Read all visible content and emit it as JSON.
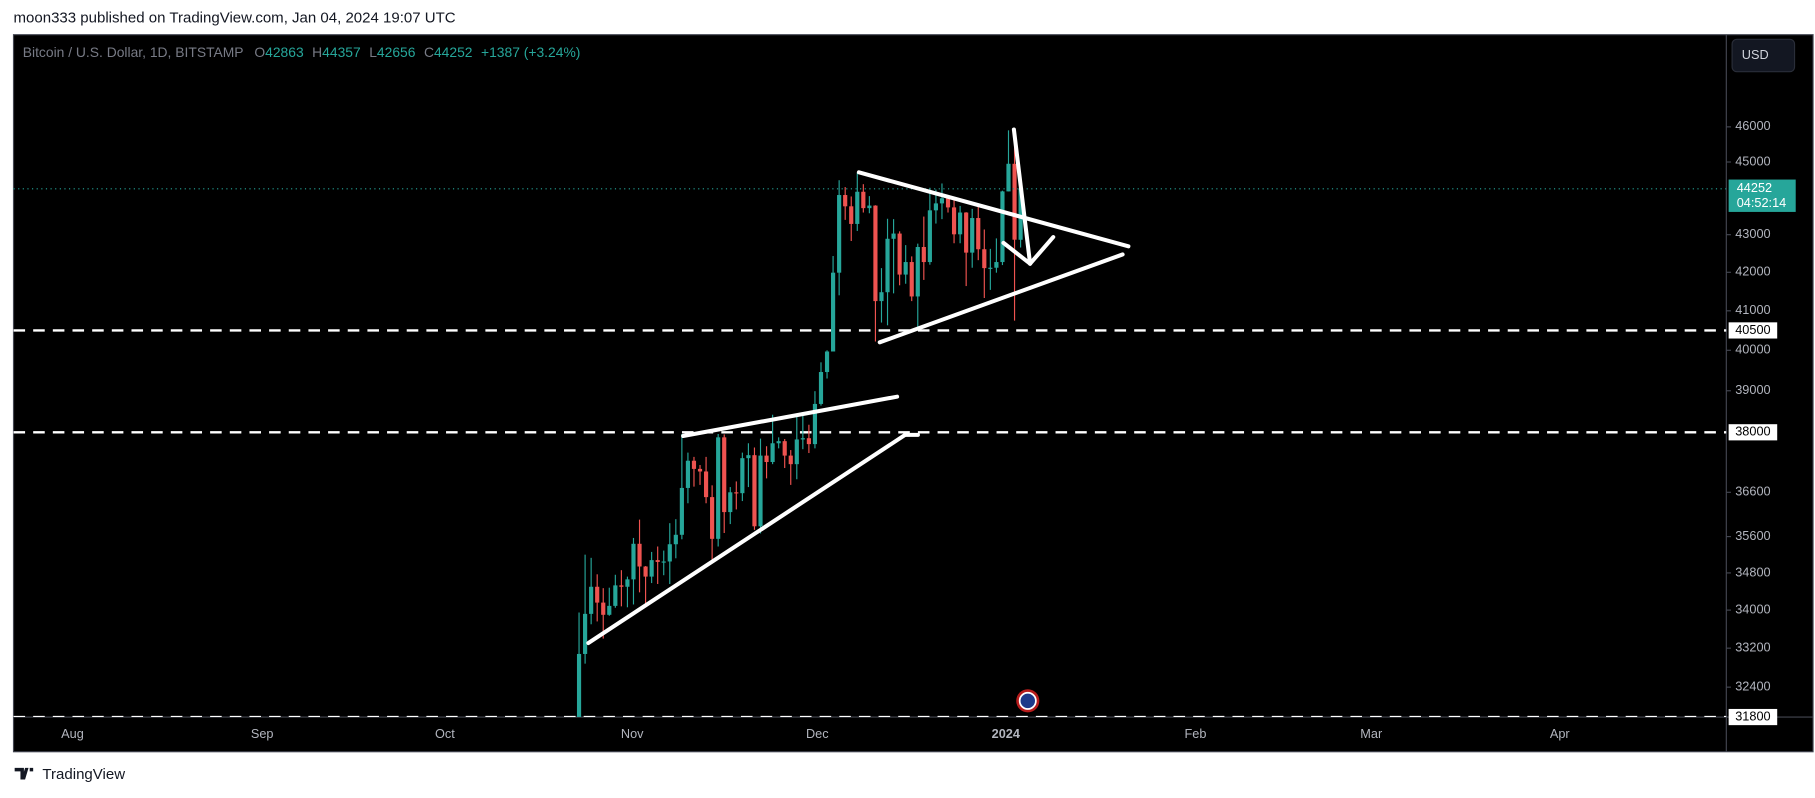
{
  "header": {
    "text": "moon333 published on TradingView.com, Jan 04, 2024 19:07 UTC"
  },
  "chart_data": {
    "type": "candlestick",
    "title": "Bitcoin / U.S. Dollar, 1D, BITSTAMP",
    "legend": {
      "open_label": "O",
      "open": 42863,
      "high_label": "H",
      "high": 44357,
      "low_label": "L",
      "low": 42656,
      "close_label": "C",
      "close": 44252,
      "change": "+1387 (+3.24%)"
    },
    "x_labels": [
      "Aug",
      "Sep",
      "Oct",
      "Nov",
      "Dec",
      "2024",
      "Feb",
      "Mar",
      "Apr"
    ],
    "open": [
      30530,
      33080,
      33920,
      34500,
      34160,
      33900,
      34090,
      34530,
      34500,
      34660,
      35440,
      34940,
      34720,
      35080,
      35040,
      35050,
      35430,
      35640,
      36700,
      37330,
      37140,
      37080,
      36490,
      35550,
      37880,
      36150,
      36600,
      36580,
      37390,
      37460,
      35830,
      37450,
      37300,
      37740,
      37790,
      37450,
      37250,
      37830,
      37860,
      37720,
      38680,
      39460,
      39970,
      41990,
      44080,
      43770,
      43290,
      44170,
      43720,
      43790,
      41250,
      41480,
      42890,
      43030,
      41940,
      42270,
      41370,
      42670,
      42270,
      43660,
      43850,
      43990,
      43740,
      43010,
      43600,
      42520,
      43450,
      42610,
      42110,
      42120,
      42270,
      44180,
      44950,
      42863
    ],
    "high": [
      33950,
      35200,
      35130,
      34770,
      34470,
      34480,
      34760,
      34860,
      34720,
      35570,
      35980,
      34950,
      35260,
      35380,
      35290,
      35900,
      35990,
      37960,
      37520,
      37420,
      37230,
      37420,
      36760,
      37960,
      37950,
      36720,
      36850,
      37520,
      37740,
      37640,
      37850,
      37670,
      38420,
      37880,
      37840,
      37580,
      38380,
      38440,
      38180,
      38990,
      39700,
      40000,
      42430,
      44490,
      44300,
      44040,
      44700,
      44380,
      44050,
      43800,
      42110,
      43430,
      43420,
      43090,
      42720,
      42420,
      42760,
      43490,
      44280,
      44230,
      44400,
      44000,
      43950,
      43780,
      43610,
      43700,
      43810,
      43140,
      42620,
      42900,
      44200,
      45900,
      45500,
      44357
    ],
    "low": [
      30370,
      32880,
      33700,
      33760,
      33400,
      33880,
      34050,
      34080,
      34060,
      34120,
      34380,
      34100,
      34580,
      34560,
      34750,
      34560,
      35120,
      35540,
      36350,
      36730,
      36770,
      36350,
      35090,
      35380,
      35680,
      35880,
      36210,
      36400,
      36720,
      35750,
      35670,
      36920,
      37250,
      37620,
      37160,
      36770,
      36900,
      37600,
      37510,
      37620,
      38640,
      39300,
      39970,
      41400,
      43400,
      42830,
      43100,
      43600,
      43580,
      40220,
      40700,
      40630,
      41450,
      41660,
      41700,
      41250,
      40530,
      41800,
      42200,
      43300,
      43420,
      43600,
      42770,
      42770,
      41640,
      42120,
      42320,
      41330,
      41540,
      41990,
      42190,
      44180,
      40750,
      42656
    ],
    "close": [
      33080,
      33920,
      34500,
      34160,
      33900,
      34090,
      34530,
      34500,
      34660,
      35440,
      34940,
      34720,
      35080,
      35040,
      35050,
      35430,
      35640,
      36700,
      37330,
      37140,
      37080,
      36490,
      35550,
      37880,
      36150,
      36600,
      36580,
      37390,
      37460,
      35830,
      37450,
      37300,
      37740,
      37790,
      37450,
      37250,
      37830,
      37860,
      37720,
      38680,
      39460,
      39970,
      41990,
      44080,
      43770,
      43290,
      44170,
      43720,
      43790,
      41250,
      41480,
      42890,
      43030,
      41940,
      42270,
      41370,
      42670,
      42270,
      43660,
      43850,
      43990,
      43740,
      43010,
      43600,
      42520,
      43450,
      42610,
      42110,
      42120,
      42270,
      44180,
      44950,
      42865,
      44252
    ],
    "up_color": "#26a69a",
    "down_color": "#ef5350",
    "log_scale": true,
    "ylim": [
      31800,
      48730
    ],
    "yticks": [
      46000,
      45000,
      43000,
      42000,
      41000,
      40000,
      39000,
      36600,
      35600,
      34800,
      34000,
      33200,
      32400
    ],
    "price_lines": [
      40500,
      38000,
      31800
    ],
    "last_price": {
      "value": 44252,
      "countdown": "04:52:14"
    },
    "currency": "USD"
  },
  "footer": {
    "brand": "TradingView"
  }
}
